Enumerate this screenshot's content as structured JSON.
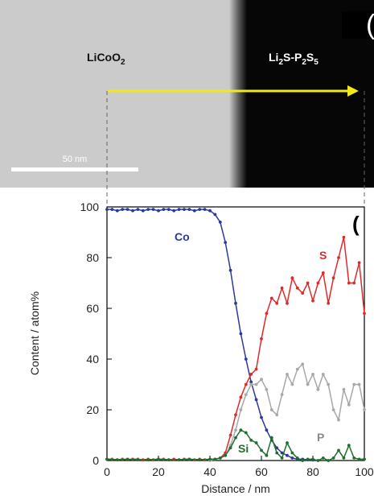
{
  "micrograph": {
    "left_label_main": "LiCoO",
    "left_label_sub": "2",
    "right_label_parts": [
      "Li",
      "2",
      "S-P",
      "2",
      "S",
      "5"
    ],
    "scalebar_label": "50 nm",
    "panel_letter": "(",
    "colors": {
      "light_region": "#cbcbcb",
      "dark_region": "#060606",
      "arrow": "#f2e81a",
      "scalebar": "#ffffff"
    }
  },
  "chart_data": {
    "type": "line",
    "title": "",
    "xlabel": "Distance / nm",
    "ylabel": "Content / atom%",
    "xlim": [
      0,
      100
    ],
    "ylim": [
      0,
      100
    ],
    "xticks": [
      0,
      20,
      40,
      60,
      80,
      100
    ],
    "yticks": [
      0,
      20,
      40,
      60,
      80,
      100
    ],
    "panel_letter": "(",
    "grid": false,
    "series": [
      {
        "name": "Co",
        "color": "#2b3a9a",
        "x": [
          0,
          2,
          4,
          6,
          8,
          10,
          12,
          14,
          16,
          18,
          20,
          22,
          24,
          26,
          28,
          30,
          32,
          34,
          36,
          38,
          40,
          42,
          44,
          46,
          48,
          50,
          52,
          54,
          56,
          58,
          60,
          62,
          64,
          66,
          68,
          70,
          72,
          74,
          76,
          78,
          80
        ],
        "y": [
          99,
          99,
          98.5,
          99,
          99,
          98.5,
          99,
          98.5,
          99,
          99,
          98.5,
          99,
          99,
          98.5,
          99,
          99,
          99,
          98.5,
          99,
          99,
          98.5,
          97,
          94,
          86,
          75,
          62,
          50,
          40,
          31,
          24,
          17,
          12,
          8,
          5,
          3,
          2,
          1,
          0.5,
          0.5,
          0.3,
          0.2
        ]
      },
      {
        "name": "S",
        "color": "#e02a2a",
        "x": [
          0,
          2,
          4,
          6,
          8,
          10,
          12,
          14,
          16,
          18,
          20,
          22,
          24,
          26,
          28,
          30,
          32,
          34,
          36,
          38,
          40,
          42,
          44,
          46,
          48,
          50,
          52,
          54,
          56,
          58,
          60,
          62,
          64,
          66,
          68,
          70,
          72,
          74,
          76,
          78,
          80,
          82,
          84,
          86,
          88,
          90,
          92,
          94,
          96,
          98,
          100
        ],
        "y": [
          0.5,
          0.5,
          0.3,
          0.5,
          0.3,
          0.5,
          0.5,
          0.3,
          0.5,
          0.3,
          0.5,
          0.5,
          0.3,
          0.5,
          0.3,
          0.5,
          0.5,
          0.3,
          0.5,
          0.3,
          0.5,
          0.5,
          1,
          3,
          10,
          18,
          25,
          30,
          34,
          36,
          48,
          58,
          64,
          62,
          68,
          62,
          72,
          68,
          66,
          70,
          63,
          70,
          74,
          62,
          72,
          80,
          88,
          70,
          70,
          78,
          58
        ]
      },
      {
        "name": "P",
        "color": "#a8a8a8",
        "x": [
          40,
          42,
          44,
          46,
          48,
          50,
          52,
          54,
          56,
          58,
          60,
          62,
          64,
          66,
          68,
          70,
          72,
          74,
          76,
          78,
          80,
          82,
          84,
          86,
          88,
          90,
          92,
          94,
          96,
          98,
          100
        ],
        "y": [
          0,
          0.5,
          1,
          2,
          6,
          12,
          20,
          26,
          30,
          30,
          32,
          28,
          20,
          18,
          26,
          34,
          30,
          36,
          38,
          30,
          34,
          28,
          34,
          30,
          20,
          16,
          28,
          22,
          30,
          30,
          20
        ]
      },
      {
        "name": "Si",
        "color": "#1f6e2b",
        "x": [
          0,
          4,
          8,
          12,
          16,
          20,
          24,
          28,
          32,
          36,
          40,
          42,
          44,
          46,
          48,
          50,
          52,
          54,
          56,
          58,
          60,
          62,
          64,
          66,
          68,
          70,
          72,
          74,
          76,
          78,
          80,
          82,
          84,
          86,
          88,
          90,
          92,
          94,
          96,
          98,
          100
        ],
        "y": [
          0.5,
          0.3,
          0.5,
          0.3,
          0.3,
          0.5,
          0.3,
          0.3,
          0.5,
          0.3,
          0.5,
          0.5,
          1,
          2,
          5,
          9,
          12,
          11,
          8,
          7,
          4,
          2,
          9,
          3,
          1,
          7,
          3,
          1,
          0,
          0.5,
          0.5,
          0,
          1,
          0,
          1,
          4,
          1,
          6,
          1,
          0.5,
          0.5
        ]
      }
    ]
  }
}
